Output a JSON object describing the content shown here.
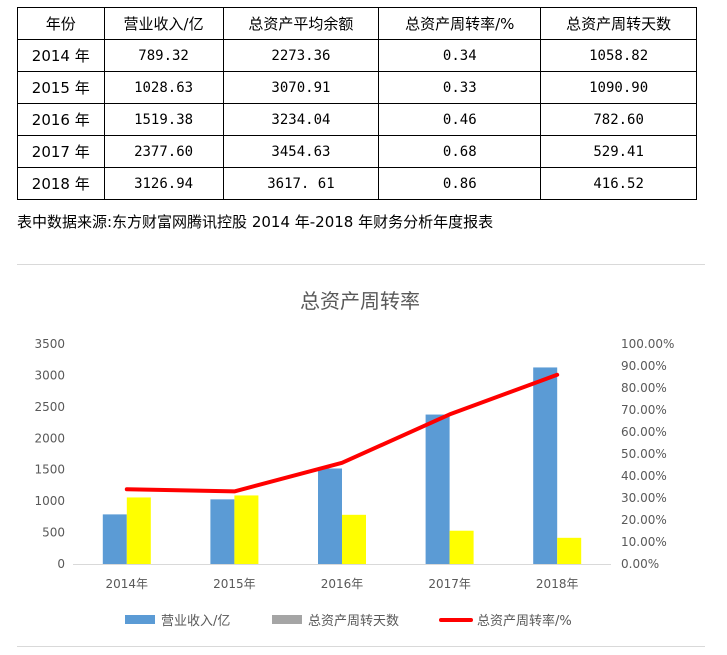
{
  "table": {
    "headers": [
      "年份",
      "营业收入/亿",
      "总资产平均余额",
      "总资产周转率/%",
      "总资产周转天数"
    ],
    "rows": [
      [
        "2014 年",
        "789.32",
        "2273.36",
        "0.34",
        "1058.82"
      ],
      [
        "2015 年",
        "1028.63",
        "3070.91",
        "0.33",
        "1090.90"
      ],
      [
        "2016 年",
        "1519.38",
        "3234.04",
        "0.46",
        "782.60"
      ],
      [
        "2017 年",
        "2377.60",
        "3454.63",
        "0.68",
        "529.41"
      ],
      [
        "2018 年",
        "3126.94",
        "3617. 61",
        "0.86",
        "416.52"
      ]
    ]
  },
  "source_note": "表中数据来源:东方财富网腾讯控股 2014 年-2018 年财务分析年度报表",
  "chart_data": {
    "type": "bar",
    "title": "总资产周转率",
    "categories": [
      "2014年",
      "2015年",
      "2016年",
      "2017年",
      "2018年"
    ],
    "series": [
      {
        "name": "营业收入/亿",
        "kind": "bar",
        "axis": "left",
        "color": "#5b9bd5",
        "values": [
          789.32,
          1028.63,
          1519.38,
          2377.6,
          3126.94
        ]
      },
      {
        "name": "总资产周转天数",
        "kind": "bar",
        "axis": "left",
        "color": "#ffff00",
        "legend_color": "#a5a5a5",
        "values": [
          1058.82,
          1090.9,
          782.6,
          529.41,
          416.52
        ]
      },
      {
        "name": "总资产周转率/%",
        "kind": "line",
        "axis": "right",
        "color": "#ff0000",
        "values": [
          0.34,
          0.33,
          0.46,
          0.68,
          0.86
        ]
      }
    ],
    "ylim": [
      0,
      3500
    ],
    "yticks": [
      "0",
      "500",
      "1000",
      "1500",
      "2000",
      "2500",
      "3000",
      "3500"
    ],
    "y2lim": [
      0,
      1
    ],
    "y2ticks": [
      "0.00%",
      "10.00%",
      "20.00%",
      "30.00%",
      "40.00%",
      "50.00%",
      "60.00%",
      "70.00%",
      "80.00%",
      "90.00%",
      "100.00%"
    ],
    "grid": false,
    "legend": "bottom"
  }
}
